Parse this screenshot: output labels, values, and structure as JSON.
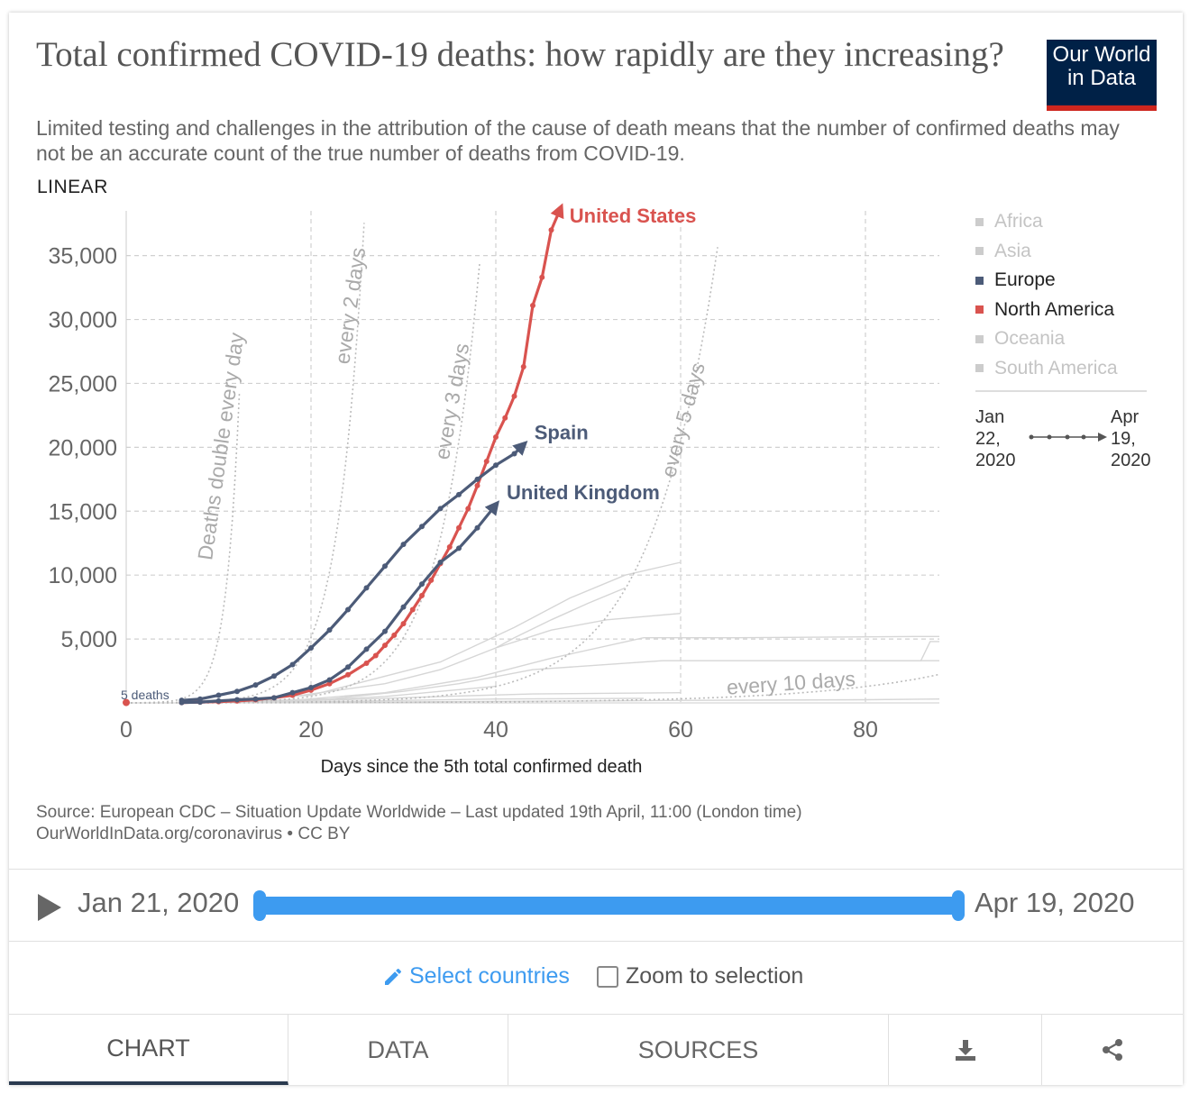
{
  "header": {
    "title": "Total confirmed COVID-19 deaths: how rapidly are they increasing?",
    "subtitle": "Limited testing and challenges in the attribution of the cause of death means that the number of confirmed deaths may not be an accurate count of the true number of deaths from COVID-19.",
    "logo_line1": "Our World",
    "logo_line2": "in Data",
    "scale_label": "LINEAR"
  },
  "colors": {
    "europe": "#4c5b78",
    "north_america": "#d9534f",
    "faded": "#d6d6d6",
    "gridline": "#d0d0d0",
    "guide": "#bbbbbb",
    "accent": "#3d9bf0"
  },
  "chart_data": {
    "type": "line",
    "title": "Total confirmed COVID-19 deaths: how rapidly are they increasing?",
    "xlabel": "Days since the 5th total confirmed death",
    "ylabel": "",
    "xlim": [
      0,
      88
    ],
    "ylim": [
      0,
      38500
    ],
    "x_ticks": [
      "0",
      "20",
      "40",
      "60",
      "80"
    ],
    "y_ticks": [
      "5,000",
      "10,000",
      "15,000",
      "20,000",
      "25,000",
      "30,000",
      "35,000"
    ],
    "grid": true,
    "legend_position": "right",
    "series": [
      {
        "name": "United States",
        "color": "#d9534f",
        "x": [
          6,
          8,
          10,
          12,
          14,
          16,
          18,
          20,
          22,
          24,
          26,
          27,
          28,
          29,
          30,
          31,
          32,
          33,
          34,
          35,
          36,
          37,
          38,
          39,
          40,
          41,
          42,
          43,
          44,
          45,
          46,
          47
        ],
        "y": [
          30,
          60,
          100,
          150,
          250,
          400,
          600,
          1000,
          1500,
          2200,
          3100,
          3700,
          4500,
          5300,
          6200,
          7300,
          8400,
          9600,
          10900,
          12200,
          13700,
          15200,
          17000,
          18900,
          20800,
          22300,
          24000,
          26300,
          31100,
          33300,
          37000,
          38700
        ]
      },
      {
        "name": "Spain",
        "color": "#4c5b78",
        "x": [
          6,
          8,
          10,
          12,
          14,
          16,
          18,
          20,
          22,
          24,
          26,
          28,
          30,
          32,
          34,
          36,
          38,
          40,
          42,
          43
        ],
        "y": [
          200,
          300,
          600,
          900,
          1400,
          2100,
          3000,
          4300,
          5700,
          7300,
          9000,
          10700,
          12400,
          13800,
          15200,
          16300,
          17500,
          18600,
          19500,
          20200
        ]
      },
      {
        "name": "United Kingdom",
        "color": "#4c5b78",
        "x": [
          6,
          8,
          10,
          12,
          14,
          16,
          18,
          20,
          22,
          24,
          26,
          28,
          30,
          32,
          34,
          36,
          38,
          40
        ],
        "y": [
          30,
          60,
          150,
          250,
          300,
          400,
          800,
          1200,
          1800,
          2800,
          4200,
          5600,
          7500,
          9300,
          11000,
          12100,
          13700,
          15500
        ]
      }
    ],
    "guides": [
      {
        "label": "Deaths double every day",
        "doubling_days": 1
      },
      {
        "label": "every 2 days",
        "doubling_days": 2
      },
      {
        "label": "every 3 days",
        "doubling_days": 3
      },
      {
        "label": "every 5 days",
        "doubling_days": 5
      },
      {
        "label": "every 10 days",
        "doubling_days": 10
      }
    ],
    "start_label": "5 deaths"
  },
  "legend": {
    "items": [
      {
        "label": "Africa",
        "color": "#cccccc",
        "active": false
      },
      {
        "label": "Asia",
        "color": "#cccccc",
        "active": false
      },
      {
        "label": "Europe",
        "color": "#4c5b78",
        "active": true
      },
      {
        "label": "North America",
        "color": "#d9534f",
        "active": true
      },
      {
        "label": "Oceania",
        "color": "#cccccc",
        "active": false
      },
      {
        "label": "South America",
        "color": "#cccccc",
        "active": false
      }
    ],
    "range_from": "Jan 22, 2020",
    "range_to": "Apr 19, 2020"
  },
  "source": {
    "line1": "Source: European CDC – Situation Update Worldwide – Last updated 19th April, 11:00 (London time)",
    "line2": "OurWorldInData.org/coronavirus • CC BY"
  },
  "timeline": {
    "start": "Jan 21, 2020",
    "end": "Apr 19, 2020"
  },
  "controls": {
    "select_countries": "Select countries",
    "zoom_to_selection": "Zoom to selection",
    "zoom_checked": false
  },
  "tabs": [
    {
      "label": "CHART",
      "active": true
    },
    {
      "label": "DATA",
      "active": false
    },
    {
      "label": "SOURCES",
      "active": false
    },
    {
      "label": "download-icon",
      "active": false
    },
    {
      "label": "share-icon",
      "active": false
    }
  ]
}
